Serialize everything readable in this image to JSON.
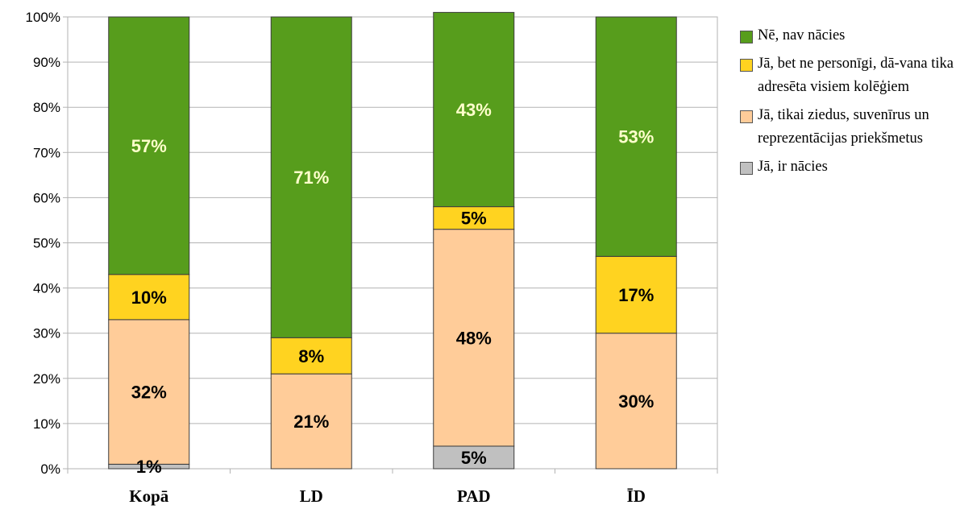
{
  "chart_data": {
    "type": "bar",
    "stacked": true,
    "categories": [
      "Kopā",
      "LD",
      "PAD",
      "ĪD"
    ],
    "ylim": [
      0,
      100
    ],
    "yticks": [
      "0%",
      "10%",
      "20%",
      "30%",
      "40%",
      "50%",
      "60%",
      "70%",
      "80%",
      "90%",
      "100%"
    ],
    "grid": true,
    "legend_position": "right",
    "series": [
      {
        "name": "Jā, ir nācies",
        "color": "#c0c0c0",
        "values": [
          1,
          0,
          5,
          0
        ],
        "labels": [
          "1%",
          "",
          "5%",
          ""
        ],
        "label_color": "#000000"
      },
      {
        "name": "Jā, tikai ziedus, suvenīrus un reprezentācijas priekšmetus",
        "color": "#ffcc99",
        "values": [
          32,
          21,
          48,
          30
        ],
        "labels": [
          "32%",
          "21%",
          "48%",
          "30%"
        ],
        "label_color": "#000000"
      },
      {
        "name": "Jā, bet ne personīgi, dāvana tika adresēta visiem kolēģiem",
        "color": "#ffd320",
        "values": [
          10,
          8,
          5,
          17
        ],
        "labels": [
          "10%",
          "8%",
          "5%",
          "17%"
        ],
        "label_color": "#000000"
      },
      {
        "name": "Nē, nav nācies",
        "color": "#579d1c",
        "values": [
          57,
          71,
          43,
          53
        ],
        "labels": [
          "57%",
          "71%",
          "43%",
          "53%"
        ],
        "label_color": "#ffffcc"
      }
    ]
  },
  "legend": [
    {
      "label": "Nē, nav nācies",
      "color": "#579d1c"
    },
    {
      "label": "Jā, bet ne personīgi, dā-vana tika adresēta visiem kolēģiem",
      "color": "#ffd320"
    },
    {
      "label": "Jā, tikai ziedus, suvenīrus un reprezentācijas priekšmetus",
      "color": "#ffcc99"
    },
    {
      "label": "Jā, ir nācies",
      "color": "#c0c0c0"
    }
  ]
}
